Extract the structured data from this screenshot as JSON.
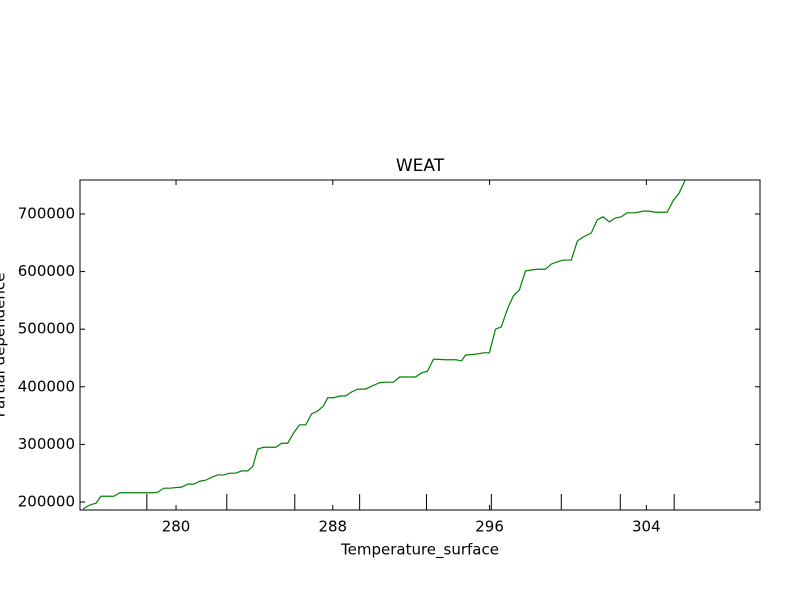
{
  "chart_data": {
    "type": "line",
    "title": "WEAT",
    "x_label": "Temperature_surface",
    "y_label": "Partial dependence",
    "xlim": [
      275.1,
      309.8
    ],
    "ylim": [
      186100,
      759000
    ],
    "xticks": [
      280,
      288,
      296,
      304
    ],
    "yticks": [
      200000,
      300000,
      400000,
      500000,
      600000,
      700000
    ],
    "deciles": [
      278.51,
      282.59,
      286.06,
      289.37,
      292.78,
      296.09,
      299.66,
      302.67,
      305.42
    ],
    "series": [
      {
        "color": "#008000",
        "x": [
          275.25,
          275.61,
          275.92,
          276.17,
          276.53,
          276.83,
          277.14,
          277.44,
          278.16,
          278.82,
          279.07,
          279.38,
          279.69,
          280.3,
          280.6,
          280.91,
          281.21,
          281.52,
          281.83,
          282.13,
          282.44,
          282.74,
          283.05,
          283.35,
          283.66,
          283.92,
          284.17,
          284.48,
          285.09,
          285.39,
          285.7,
          286.0,
          286.31,
          286.62,
          286.92,
          287.23,
          287.53,
          287.74,
          288.04,
          288.35,
          288.65,
          288.96,
          289.27,
          289.67,
          289.98,
          290.39,
          290.69,
          291.1,
          291.41,
          291.92,
          292.22,
          292.53,
          292.83,
          293.14,
          293.75,
          294.26,
          294.57,
          294.77,
          295.38,
          295.69,
          295.99,
          296.3,
          296.6,
          296.91,
          297.22,
          297.52,
          297.83,
          298.13,
          298.44,
          298.85,
          299.15,
          299.46,
          299.76,
          300.17,
          300.48,
          300.78,
          301.19,
          301.5,
          301.8,
          302.11,
          302.41,
          302.72,
          303.02,
          303.43,
          303.84,
          304.15,
          304.45,
          304.76,
          305.06,
          305.37,
          305.67,
          306.08
        ],
        "values": [
          188000,
          195000,
          198000,
          210000,
          210000,
          210000,
          216000,
          216000,
          216000,
          216000,
          217000,
          224000,
          224000,
          226000,
          231000,
          231000,
          236000,
          238000,
          243000,
          247000,
          247000,
          250000,
          250000,
          254000,
          254000,
          262000,
          292000,
          295000,
          295000,
          302000,
          302000,
          320000,
          334000,
          334000,
          353000,
          358000,
          367000,
          381000,
          381000,
          384000,
          384000,
          391000,
          396000,
          396000,
          401000,
          407000,
          408000,
          408000,
          417000,
          417000,
          417000,
          424000,
          427000,
          448000,
          447000,
          447000,
          445000,
          455000,
          457000,
          459000,
          459000,
          500000,
          504000,
          535000,
          558000,
          568000,
          601000,
          603000,
          604000,
          604000,
          613000,
          617000,
          620000,
          620000,
          653000,
          660000,
          667000,
          690000,
          695000,
          686000,
          693000,
          695000,
          702000,
          702000,
          705000,
          705000,
          703000,
          703000,
          703000,
          723000,
          736000,
          766000
        ]
      }
    ]
  }
}
